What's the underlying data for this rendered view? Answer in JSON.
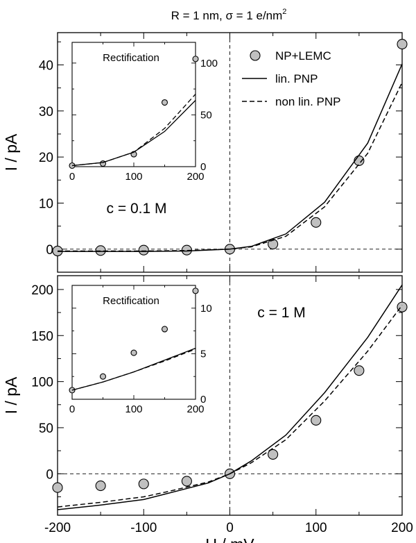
{
  "title": "R = 1 nm, σ = 1 e/nm",
  "title_sup": "2",
  "chart_data": [
    {
      "type": "line",
      "panel": "top",
      "ylabel": "I / pA",
      "xlabel": "",
      "annotation": "c = 0.1 M",
      "xlim": [
        -200,
        200
      ],
      "ylim": [
        -5,
        47
      ],
      "xticks": [
        -200,
        -100,
        0,
        100,
        200
      ],
      "yticks": [
        0,
        10,
        20,
        30,
        40
      ],
      "legend": [
        "NP+LEMC",
        "lin. PNP",
        "non lin. PNP"
      ],
      "series": [
        {
          "name": "NP+LEMC",
          "style": "markers",
          "x": [
            -200,
            -150,
            -100,
            -50,
            0,
            50,
            100,
            150,
            200
          ],
          "y": [
            -0.4,
            -0.3,
            -0.2,
            -0.2,
            0,
            1.1,
            5.8,
            19.2,
            44.5
          ]
        },
        {
          "name": "lin. PNP",
          "style": "solid",
          "x": [
            -200,
            -150,
            -100,
            -50,
            0,
            25,
            65,
            110,
            160,
            200
          ],
          "y": [
            -0.5,
            -0.5,
            -0.5,
            -0.4,
            0,
            0.6,
            3.3,
            10.2,
            23,
            40.2
          ]
        },
        {
          "name": "non lin. PNP",
          "style": "dashed",
          "x": [
            -200,
            -150,
            -100,
            -50,
            0,
            25,
            65,
            110,
            160,
            200
          ],
          "y": [
            -0.4,
            -0.4,
            -0.4,
            -0.3,
            0,
            0.5,
            2.8,
            9.2,
            20.8,
            36.2
          ]
        }
      ],
      "inset": {
        "title": "Rectification",
        "xlim": [
          0,
          200
        ],
        "ylim": [
          0,
          120
        ],
        "xticks": [
          0,
          100,
          200
        ],
        "yticks": [
          0,
          50,
          100
        ],
        "series": [
          {
            "name": "NP+LEMC",
            "style": "markers",
            "x": [
              0,
              50,
              100,
              150,
              200
            ],
            "y": [
              1,
              3,
              12,
              62,
              104
            ]
          },
          {
            "name": "lin. PNP",
            "style": "solid",
            "x": [
              0,
              50,
              100,
              150,
              200
            ],
            "y": [
              1,
              4,
              14,
              34,
              64
            ]
          },
          {
            "name": "non lin. PNP",
            "style": "dashed",
            "x": [
              0,
              50,
              100,
              150,
              200
            ],
            "y": [
              1,
              4,
              14,
              37,
              70
            ]
          }
        ]
      }
    },
    {
      "type": "line",
      "panel": "bottom",
      "ylabel": "I / pA",
      "xlabel": "U / mV",
      "annotation": "c = 1 M",
      "xlim": [
        -200,
        200
      ],
      "ylim": [
        -45,
        215
      ],
      "xticks": [
        -200,
        -100,
        0,
        100,
        200
      ],
      "yticks": [
        0,
        50,
        100,
        150,
        200
      ],
      "series": [
        {
          "name": "NP+LEMC",
          "style": "markers",
          "x": [
            -200,
            -150,
            -100,
            -50,
            0,
            50,
            100,
            150,
            200
          ],
          "y": [
            -15,
            -13,
            -11,
            -8,
            0,
            21,
            58,
            112,
            181
          ]
        },
        {
          "name": "lin. PNP",
          "style": "solid",
          "x": [
            -200,
            -150,
            -100,
            -75,
            -25,
            0,
            25,
            65,
            110,
            160,
            200
          ],
          "y": [
            -39,
            -34,
            -28,
            -22,
            -10,
            0,
            14,
            42,
            88,
            148,
            205
          ]
        },
        {
          "name": "non lin. PNP",
          "style": "dashed",
          "x": [
            -200,
            -150,
            -100,
            -75,
            -25,
            0,
            25,
            65,
            110,
            160,
            200
          ],
          "y": [
            -36,
            -31,
            -25,
            -20,
            -9,
            0,
            12,
            37,
            79,
            133,
            183
          ]
        }
      ],
      "inset": {
        "title": "Rectification",
        "xlim": [
          0,
          200
        ],
        "ylim": [
          0,
          12.5
        ],
        "xticks": [
          0,
          100,
          200
        ],
        "yticks": [
          0,
          5,
          10
        ],
        "series": [
          {
            "name": "NP+LEMC",
            "style": "markers",
            "x": [
              0,
              50,
              100,
              150,
              200
            ],
            "y": [
              1,
              2.5,
              5.1,
              7.7,
              11.9
            ]
          },
          {
            "name": "lin. PNP",
            "style": "solid",
            "x": [
              0,
              50,
              100,
              150,
              200
            ],
            "y": [
              1,
              1.9,
              3,
              4.3,
              5.6
            ]
          },
          {
            "name": "non lin. PNP",
            "style": "dashed",
            "x": [
              0,
              50,
              100,
              150,
              200
            ],
            "y": [
              1,
              1.9,
              3,
              4.2,
              5.5
            ]
          }
        ]
      }
    }
  ]
}
